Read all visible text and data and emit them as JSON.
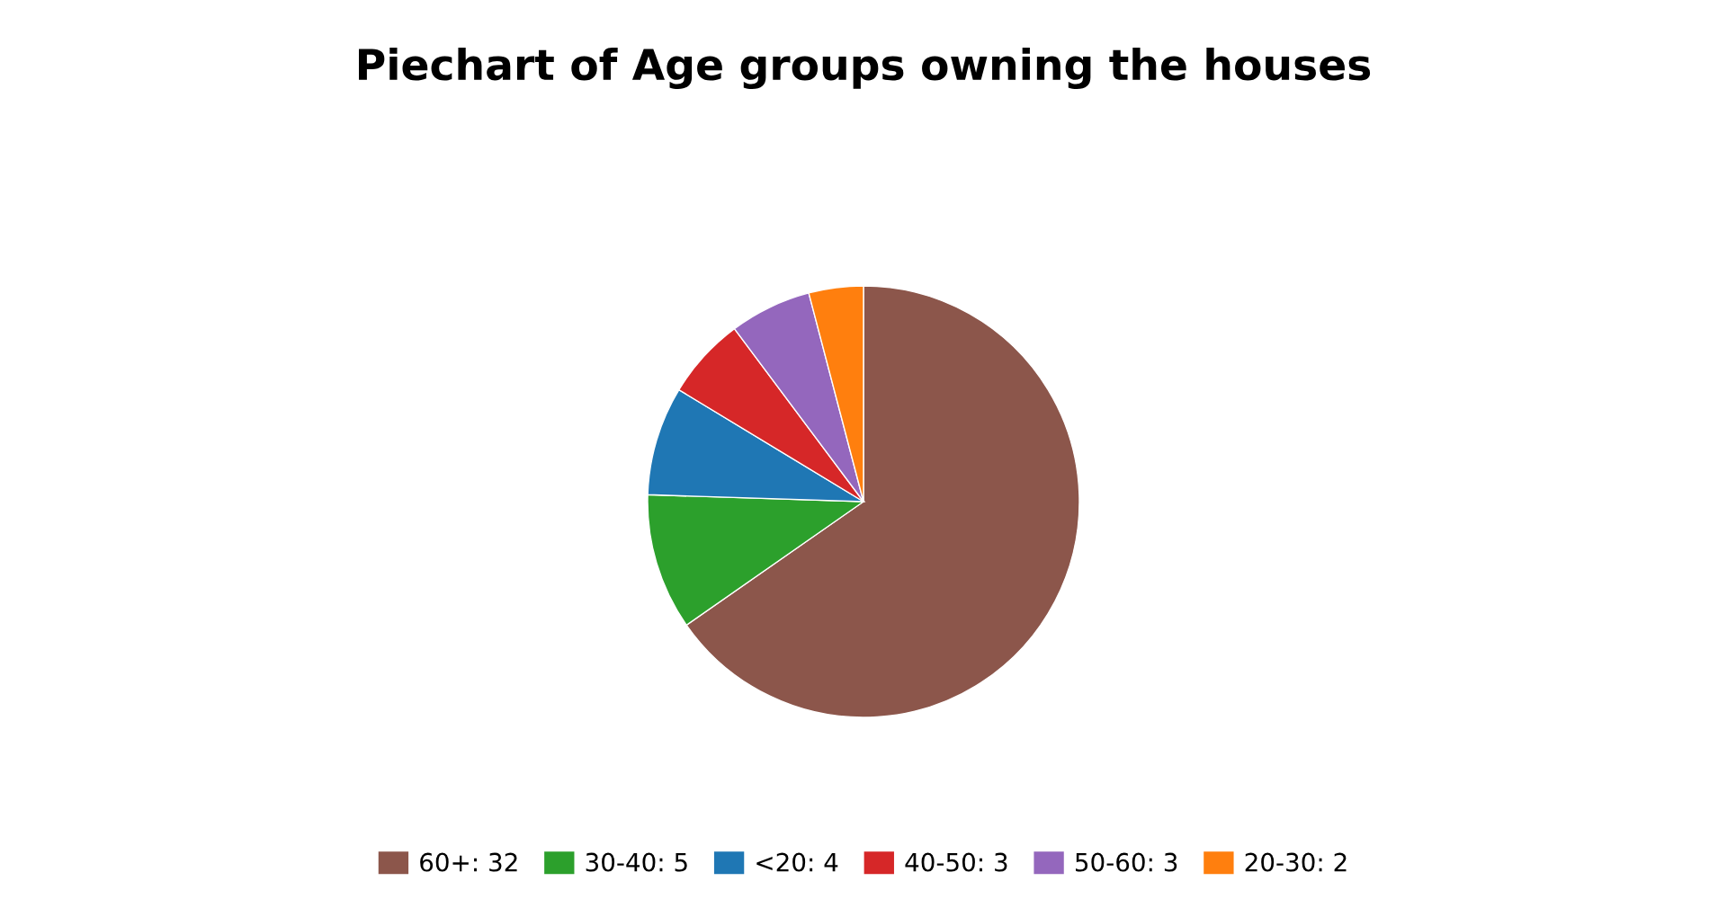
{
  "chart_data": {
    "type": "pie",
    "title": "Piechart of Age groups owning the houses",
    "categories": [
      "60+: 32",
      "30-40: 5",
      "<20: 4",
      "40-50: 3",
      "50-60: 3",
      "20-30: 2"
    ],
    "values": [
      32,
      5,
      4,
      3,
      3,
      2
    ],
    "colors": [
      "#8c564b",
      "#2ca02c",
      "#1f77b4",
      "#d62728",
      "#9467bd",
      "#ff7f0e"
    ],
    "legend": "bottom"
  }
}
